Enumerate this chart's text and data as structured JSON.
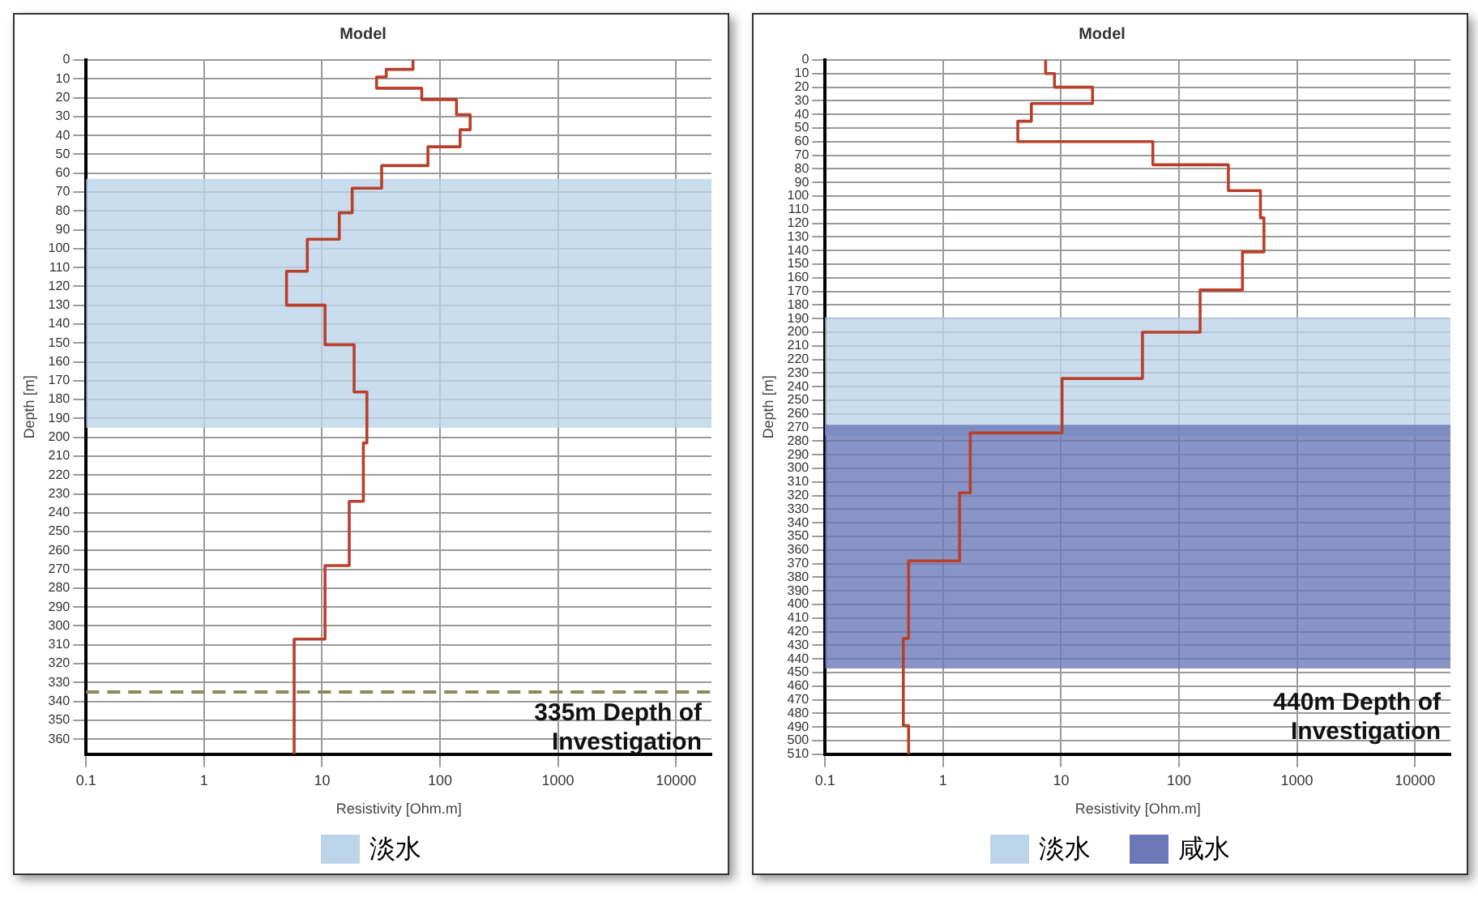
{
  "chart_data": [
    {
      "type": "line",
      "title": "Model",
      "xlabel": "Resistivity [Ohm.m]",
      "ylabel": "Depth [m]",
      "log": "x",
      "grid": true,
      "line_style": "solid",
      "marker": "none",
      "legend": "bottom",
      "xlim": [
        0.1,
        20000
      ],
      "ylim": [
        368,
        0
      ],
      "xticks": [
        {
          "value": 0.1,
          "label": "0.1"
        },
        1,
        10,
        100,
        1000,
        10000
      ],
      "yticks": [
        0,
        10,
        20,
        30,
        40,
        50,
        60,
        70,
        80,
        90,
        100,
        110,
        120,
        130,
        140,
        150,
        160,
        170,
        180,
        190,
        200,
        210,
        220,
        230,
        240,
        250,
        260,
        270,
        280,
        290,
        300,
        310,
        320,
        330,
        340,
        350,
        360
      ],
      "series": [
        {
          "color": "#b8402a",
          "x": [
            59,
            59,
            35,
            35,
            29,
            29,
            70,
            70,
            138,
            138,
            180,
            180,
            148,
            148,
            79,
            79,
            32,
            32,
            18,
            18,
            14,
            14,
            7.5,
            7.5,
            5,
            5,
            10.6,
            10.6,
            18.7,
            18.7,
            24,
            24,
            22.4,
            22.4,
            17,
            17,
            10.6,
            10.6,
            5.8,
            5.8
          ],
          "values": [
            0,
            5,
            5,
            9,
            9,
            15,
            15,
            21,
            21,
            29,
            29,
            37,
            37,
            46,
            46,
            56,
            56,
            68,
            68,
            81,
            81,
            95,
            95,
            112,
            112,
            130,
            130,
            151,
            151,
            176,
            176,
            203,
            203,
            234,
            234,
            268,
            268,
            307,
            307,
            368
          ]
        }
      ],
      "bands": [
        {
          "axis": "y",
          "from": 63,
          "to": 195,
          "label": "淡水",
          "color": "#bcd4ea"
        }
      ],
      "ref_lines": [
        {
          "axis": "y",
          "value": 335,
          "label": "335m Depth of Investigation",
          "color": "#8a8a5a",
          "line_style": "dashed"
        }
      ]
    },
    {
      "type": "line",
      "title": "Model",
      "xlabel": "Resistivity [Ohm.m]",
      "ylabel": "Depth [m]",
      "log": "x",
      "grid": true,
      "line_style": "solid",
      "marker": "none",
      "legend": "bottom",
      "xlim": [
        0.1,
        20000
      ],
      "ylim": [
        510,
        0
      ],
      "xticks": [
        {
          "value": 0.1,
          "label": "0.1"
        },
        1,
        10,
        100,
        1000,
        10000
      ],
      "yticks": [
        0,
        10,
        20,
        30,
        40,
        50,
        60,
        70,
        80,
        90,
        100,
        110,
        120,
        130,
        140,
        150,
        160,
        170,
        180,
        190,
        200,
        210,
        220,
        230,
        240,
        250,
        260,
        270,
        280,
        290,
        300,
        310,
        320,
        330,
        340,
        350,
        360,
        370,
        380,
        390,
        400,
        410,
        420,
        430,
        440,
        450,
        460,
        470,
        480,
        490,
        500,
        510
      ],
      "series": [
        {
          "color": "#b8402a",
          "x": [
            7.4,
            7.4,
            8.8,
            8.8,
            18.5,
            18.5,
            5.6,
            5.6,
            4.3,
            4.3,
            60,
            60,
            262,
            262,
            490,
            490,
            525,
            525,
            345,
            345,
            151,
            151,
            49,
            49,
            10.2,
            10.2,
            1.7,
            1.7,
            1.38,
            1.38,
            0.51,
            0.51,
            0.46,
            0.46,
            0.51,
            0.51
          ],
          "values": [
            0,
            10,
            10,
            20,
            20,
            32,
            32,
            45,
            45,
            60,
            60,
            77,
            77,
            96,
            96,
            116,
            116,
            141,
            141,
            169,
            169,
            200,
            200,
            234,
            234,
            274,
            274,
            318,
            318,
            368,
            368,
            425,
            425,
            489,
            489,
            510
          ]
        }
      ],
      "bands": [
        {
          "axis": "y",
          "from": 189,
          "to": 276,
          "label": "淡水",
          "color": "#bcd4ea"
        },
        {
          "axis": "y",
          "from": 268,
          "to": 447,
          "label": "咸水",
          "color": "#6a78b8"
        }
      ],
      "annotations": [
        "440m Depth of Investigation"
      ]
    }
  ]
}
